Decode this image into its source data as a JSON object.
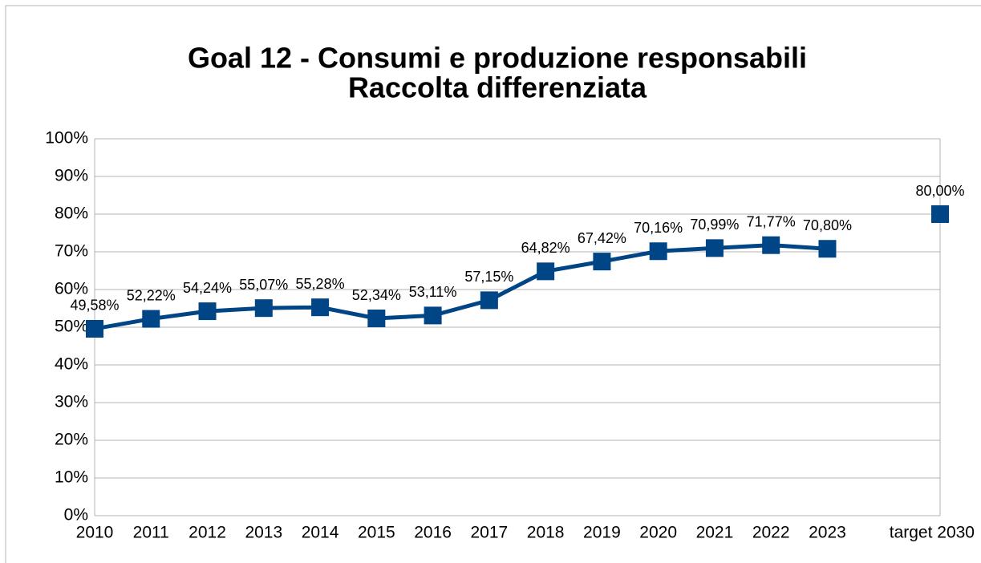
{
  "chart_data": {
    "type": "line",
    "title": "Goal 12 - Consumi e produzione responsabili",
    "subtitle": "Raccolta differenziata",
    "categories": [
      "2010",
      "2011",
      "2012",
      "2013",
      "2014",
      "2015",
      "2016",
      "2017",
      "2018",
      "2019",
      "2020",
      "2021",
      "2022",
      "2023",
      null,
      "target 2030"
    ],
    "series": [
      {
        "name": "Raccolta differenziata",
        "color": "#004586",
        "values": [
          49.58,
          52.22,
          54.24,
          55.07,
          55.28,
          52.34,
          53.11,
          57.15,
          64.82,
          67.42,
          70.16,
          70.99,
          71.77,
          70.8,
          null,
          80.0
        ],
        "value_labels": [
          "49,58%",
          "52,22%",
          "54,24%",
          "55,07%",
          "55,28%",
          "52,34%",
          "53,11%",
          "57,15%",
          "64,82%",
          "67,42%",
          "70,16%",
          "70,99%",
          "71,77%",
          "70,80%",
          null,
          "80,00%"
        ]
      }
    ],
    "ylim": [
      0,
      100
    ],
    "yticks": [
      {
        "value": 0,
        "label": "0%"
      },
      {
        "value": 10,
        "label": "10%"
      },
      {
        "value": 20,
        "label": "20%"
      },
      {
        "value": 30,
        "label": "30%"
      },
      {
        "value": 40,
        "label": "40%"
      },
      {
        "value": 50,
        "label": "50%"
      },
      {
        "value": 60,
        "label": "60%"
      },
      {
        "value": 70,
        "label": "70%"
      },
      {
        "value": 80,
        "label": "80%"
      },
      {
        "value": 90,
        "label": "90%"
      },
      {
        "value": 100,
        "label": "100%"
      }
    ],
    "grid": true
  }
}
